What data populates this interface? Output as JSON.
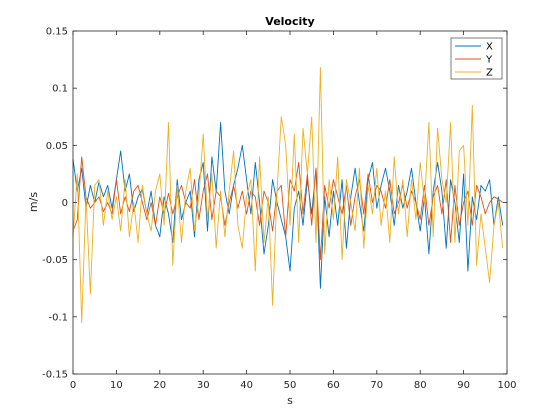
{
  "chart_data": {
    "type": "line",
    "title": "Velocity",
    "xlabel": "s",
    "ylabel": "m/s",
    "xlim": [
      0,
      100
    ],
    "ylim": [
      -0.15,
      0.15
    ],
    "xticks": [
      0,
      10,
      20,
      30,
      40,
      50,
      60,
      70,
      80,
      90,
      100
    ],
    "yticks": [
      -0.15,
      -0.1,
      -0.05,
      0,
      0.05,
      0.1,
      0.15
    ],
    "ytick_labels": [
      "-0.15",
      "-0.1",
      "-0.05",
      "0",
      "0.05",
      "0.1",
      "0.15"
    ],
    "grid": false,
    "legend_position": "top-right",
    "x": [
      0,
      1,
      2,
      3,
      4,
      5,
      6,
      7,
      8,
      9,
      10,
      11,
      12,
      13,
      14,
      15,
      16,
      17,
      18,
      19,
      20,
      21,
      22,
      23,
      24,
      25,
      26,
      27,
      28,
      29,
      30,
      31,
      32,
      33,
      34,
      35,
      36,
      37,
      38,
      39,
      40,
      41,
      42,
      43,
      44,
      45,
      46,
      47,
      48,
      49,
      50,
      51,
      52,
      53,
      54,
      55,
      56,
      57,
      58,
      59,
      60,
      61,
      62,
      63,
      64,
      65,
      66,
      67,
      68,
      69,
      70,
      71,
      72,
      73,
      74,
      75,
      76,
      77,
      78,
      79,
      80,
      81,
      82,
      83,
      84,
      85,
      86,
      87,
      88,
      89,
      90,
      91,
      92,
      93,
      94,
      95,
      96,
      97,
      98,
      99
    ],
    "series": [
      {
        "name": "X",
        "color": "#0072BD",
        "values": [
          0.038,
          0.01,
          0.03,
          -0.005,
          0.015,
          0.0,
          0.018,
          0.005,
          0.015,
          -0.005,
          0.02,
          0.045,
          0.01,
          0.025,
          -0.008,
          0.005,
          0.012,
          -0.01,
          0.01,
          -0.02,
          -0.03,
          0.005,
          -0.01,
          -0.035,
          0.02,
          -0.015,
          0.0,
          0.01,
          -0.03,
          0.02,
          0.035,
          -0.025,
          0.04,
          0.01,
          0.07,
          0.01,
          -0.01,
          0.015,
          0.03,
          0.05,
          0.02,
          -0.01,
          0.035,
          0.0,
          -0.045,
          -0.02,
          0.02,
          0.0,
          -0.015,
          -0.03,
          -0.06,
          -0.005,
          0.01,
          -0.02,
          0.02,
          -0.01,
          0.03,
          -0.075,
          0.005,
          -0.03,
          0.01,
          -0.02,
          0.02,
          -0.04,
          0.005,
          0.03,
          0.0,
          -0.025,
          0.02,
          0.035,
          -0.005,
          0.015,
          0.03,
          0.01,
          -0.02,
          0.015,
          -0.005,
          0.01,
          0.03,
          0.0,
          -0.025,
          0.005,
          -0.045,
          0.01,
          0.035,
          0.01,
          -0.04,
          0.02,
          0.0,
          -0.035,
          0.025,
          -0.06,
          0.005,
          -0.015,
          0.015,
          0.01,
          0.02,
          -0.02,
          0.005,
          -0.02
        ]
      },
      {
        "name": "Y",
        "color": "#D95319",
        "values": [
          -0.025,
          -0.015,
          0.04,
          0.005,
          -0.005,
          0.0,
          0.005,
          -0.008,
          0.0,
          -0.01,
          0.02,
          -0.01,
          0.005,
          -0.008,
          0.01,
          0.015,
          0.0,
          -0.015,
          0.0,
          -0.02,
          0.005,
          -0.01,
          0.008,
          -0.01,
          0.005,
          0.015,
          0.0,
          -0.005,
          0.02,
          -0.015,
          0.01,
          0.025,
          -0.015,
          0.01,
          0.005,
          -0.02,
          0.0,
          0.015,
          -0.005,
          0.01,
          -0.01,
          0.01,
          0.005,
          -0.02,
          0.01,
          0.0,
          -0.025,
          0.01,
          0.015,
          -0.03,
          0.02,
          0.01,
          0.035,
          -0.01,
          0.025,
          -0.02,
          0.03,
          -0.05,
          0.015,
          -0.005,
          0.02,
          0.005,
          -0.01,
          0.015,
          -0.02,
          0.005,
          0.02,
          -0.01,
          0.025,
          0.0,
          0.015,
          0.01,
          -0.005,
          0.02,
          -0.01,
          0.0,
          0.015,
          -0.005,
          0.01,
          0.0,
          -0.015,
          0.015,
          -0.02,
          0.005,
          0.015,
          -0.01,
          0.02,
          -0.035,
          0.015,
          -0.02,
          0.0,
          0.01,
          -0.02,
          0.015,
          0.005,
          -0.01,
          0.0,
          0.005,
          0.003,
          0.0
        ]
      },
      {
        "name": "Z",
        "color": "#EDB120",
        "values": [
          -0.03,
          0.025,
          -0.105,
          0.005,
          -0.08,
          0.015,
          0.02,
          -0.02,
          0.01,
          -0.015,
          0.005,
          -0.025,
          0.02,
          -0.03,
          0.0,
          -0.035,
          0.015,
          -0.01,
          -0.025,
          0.01,
          0.025,
          -0.02,
          0.07,
          -0.055,
          0.015,
          -0.035,
          0.01,
          0.03,
          -0.025,
          0.005,
          0.06,
          -0.015,
          0.025,
          -0.04,
          0.01,
          -0.03,
          0.01,
          0.045,
          -0.02,
          -0.04,
          0.005,
          0.02,
          -0.06,
          0.04,
          -0.035,
          0.005,
          -0.09,
          0.01,
          0.075,
          0.05,
          -0.02,
          0.06,
          -0.035,
          0.065,
          0.025,
          0.075,
          -0.035,
          0.118,
          -0.045,
          0.02,
          -0.015,
          0.04,
          -0.05,
          0.02,
          0.0,
          -0.025,
          0.03,
          -0.04,
          0.015,
          -0.01,
          0.03,
          -0.02,
          0.01,
          -0.035,
          0.04,
          -0.01,
          0.02,
          -0.03,
          0.02,
          -0.015,
          0.035,
          0.0,
          0.07,
          -0.03,
          0.065,
          0.02,
          0.0,
          0.07,
          -0.035,
          0.045,
          0.05,
          -0.02,
          0.085,
          -0.055,
          -0.01,
          -0.04,
          -0.07,
          -0.02,
          0.0,
          -0.04
        ]
      }
    ]
  }
}
